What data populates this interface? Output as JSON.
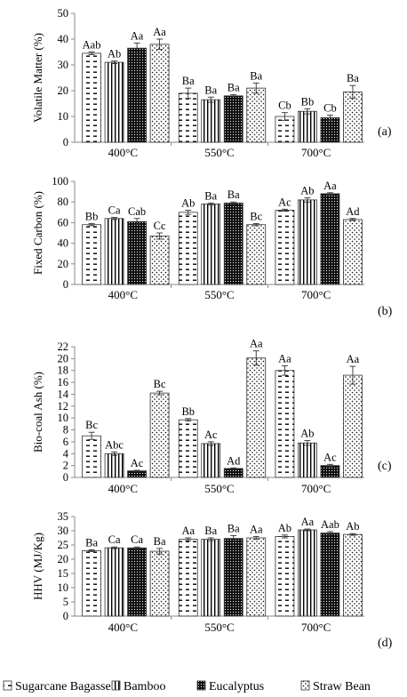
{
  "chart_data": [
    {
      "type": "bar",
      "panel_label": "(a)",
      "ylabel": "Volatile Matter (%)",
      "ylim": [
        0,
        50
      ],
      "yticks": [
        0,
        10,
        20,
        30,
        40,
        50
      ],
      "categories": [
        "400°C",
        "550°C",
        "700°C"
      ],
      "series": [
        {
          "name": "Sugarcane Bagasse",
          "values": [
            34.5,
            19,
            10
          ],
          "errors": [
            0.5,
            2,
            1.5
          ],
          "labels": [
            "Aab",
            "Ba",
            "Cb"
          ]
        },
        {
          "name": "Bamboo",
          "values": [
            31,
            16.5,
            12
          ],
          "errors": [
            0.5,
            1,
            1
          ],
          "labels": [
            "Ab",
            "Ba",
            "Bb"
          ]
        },
        {
          "name": "Eucalyptus",
          "values": [
            36.5,
            18,
            9.5
          ],
          "errors": [
            2,
            0.5,
            1
          ],
          "labels": [
            "Aa",
            "Ba",
            "Cb"
          ]
        },
        {
          "name": "Straw Bean",
          "values": [
            38,
            21,
            19.5
          ],
          "errors": [
            2,
            2,
            2.5
          ],
          "labels": [
            "Aa",
            "Ba",
            "Ba"
          ]
        }
      ]
    },
    {
      "type": "bar",
      "panel_label": "(b)",
      "ylabel": "Fixed Carbon (%)",
      "ylim": [
        0,
        100
      ],
      "yticks": [
        0,
        20,
        40,
        60,
        80,
        100
      ],
      "categories": [
        "400°C",
        "550°C",
        "700°C"
      ],
      "series": [
        {
          "name": "Sugarcane Bagasse",
          "values": [
            58,
            70,
            72
          ],
          "errors": [
            1,
            2,
            1
          ],
          "labels": [
            "Bb",
            "Ab",
            "Ac"
          ]
        },
        {
          "name": "Bamboo",
          "values": [
            64,
            78,
            82
          ],
          "errors": [
            1,
            1,
            2
          ],
          "labels": [
            "Ca",
            "Ba",
            "Ab"
          ]
        },
        {
          "name": "Eucalyptus",
          "values": [
            61,
            79,
            88
          ],
          "errors": [
            3,
            1,
            1
          ],
          "labels": [
            "Cab",
            "Ba",
            "Aa"
          ]
        },
        {
          "name": "Straw Bean",
          "values": [
            47,
            58,
            63
          ],
          "errors": [
            3,
            1,
            1
          ],
          "labels": [
            "Cc",
            "Bc",
            "Ad"
          ]
        }
      ]
    },
    {
      "type": "bar",
      "panel_label": "(c)",
      "ylabel": "Bio-coal Ash (%)",
      "ylim": [
        0,
        22
      ],
      "yticks": [
        0,
        2,
        4,
        6,
        8,
        10,
        12,
        14,
        16,
        18,
        20,
        22
      ],
      "categories": [
        "400°C",
        "550°C",
        "700°C"
      ],
      "series": [
        {
          "name": "Sugarcane Bagasse",
          "values": [
            7,
            9.7,
            18
          ],
          "errors": [
            0.6,
            0.2,
            0.8
          ],
          "labels": [
            "Bc",
            "Bb",
            "Aa"
          ]
        },
        {
          "name": "Bamboo",
          "values": [
            4,
            5.7,
            5.8
          ],
          "errors": [
            0.3,
            0.3,
            0.4
          ],
          "labels": [
            "Abc",
            "Ac",
            "Ab"
          ]
        },
        {
          "name": "Eucalyptus",
          "values": [
            1.1,
            1.5,
            2
          ],
          "errors": [
            0.1,
            0.1,
            0.2
          ],
          "labels": [
            "Ac",
            "Ad",
            "Ac"
          ]
        },
        {
          "name": "Straw Bean",
          "values": [
            14.2,
            20.1,
            17.2
          ],
          "errors": [
            0.3,
            1.2,
            1.5
          ],
          "labels": [
            "Bc",
            "Aa",
            "Aa"
          ]
        }
      ]
    },
    {
      "type": "bar",
      "panel_label": "(d)",
      "ylabel": "HHV (MJ/Kg)",
      "ylim": [
        0,
        35
      ],
      "yticks": [
        0,
        5,
        10,
        15,
        20,
        25,
        30,
        35
      ],
      "categories": [
        "400°C",
        "550°C",
        "700°C"
      ],
      "series": [
        {
          "name": "Sugarcane Bagasse",
          "values": [
            23,
            27,
            28
          ],
          "errors": [
            0.3,
            0.5,
            0.5
          ],
          "labels": [
            "Ba",
            "Aa",
            "Ab"
          ]
        },
        {
          "name": "Bamboo",
          "values": [
            24,
            27,
            30.3
          ],
          "errors": [
            0.3,
            0.5,
            0.3
          ],
          "labels": [
            "Ca",
            "Ba",
            "Aa"
          ]
        },
        {
          "name": "Eucalyptus",
          "values": [
            24,
            27.3,
            29.2
          ],
          "errors": [
            0.3,
            1,
            0.5
          ],
          "labels": [
            "Ca",
            "Ba",
            "Aab"
          ]
        },
        {
          "name": "Straw Bean",
          "values": [
            22.8,
            27.5,
            28.7
          ],
          "errors": [
            1,
            0.5,
            0.3
          ],
          "labels": [
            "Ba",
            "Aa",
            "Ab"
          ]
        }
      ]
    }
  ],
  "legend": {
    "placement": "bottom",
    "items": [
      {
        "name": "Sugarcane Bagasse",
        "pattern": "dash"
      },
      {
        "name": "Bamboo",
        "pattern": "vertical"
      },
      {
        "name": "Eucalyptus",
        "pattern": "dark-dots"
      },
      {
        "name": "Straw Bean",
        "pattern": "dots"
      }
    ]
  }
}
